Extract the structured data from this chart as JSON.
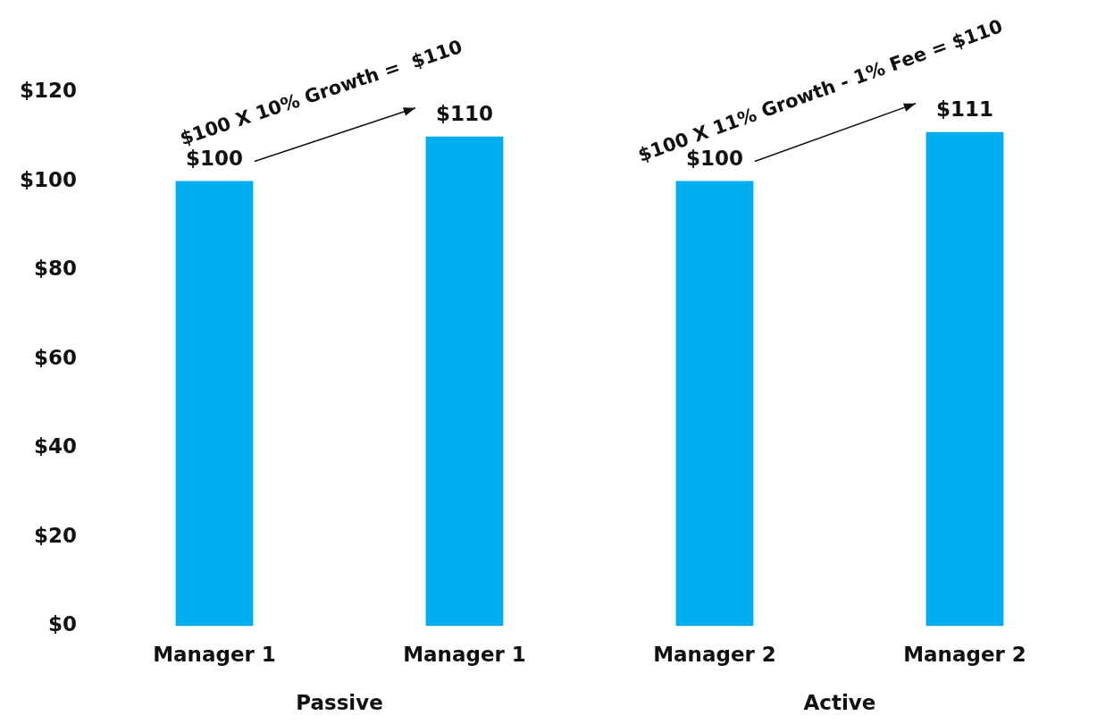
{
  "chart_data": {
    "type": "bar",
    "categories": [
      "Manager 1",
      "Manager 1",
      "Manager 2",
      "Manager 2"
    ],
    "values": [
      100,
      110,
      100,
      111
    ],
    "color": "#00aeef",
    "value_labels": [
      "$100",
      "$110",
      "$100",
      "$111"
    ],
    "ylim": [
      0,
      120
    ],
    "yticks": [
      {
        "value": 0,
        "label": "$0"
      },
      {
        "value": 20,
        "label": "$20"
      },
      {
        "value": 40,
        "label": "$40"
      },
      {
        "value": 60,
        "label": "$60"
      },
      {
        "value": 80,
        "label": "$80"
      },
      {
        "value": 100,
        "label": "$100"
      },
      {
        "value": 120,
        "label": "$120"
      }
    ],
    "annotations": [
      "$100 X 10% Growth =  $110",
      "$100 X 11% Growth - 1% Fee = $110",
      "Passive",
      "Active"
    ],
    "grid": false,
    "legend": false
  }
}
